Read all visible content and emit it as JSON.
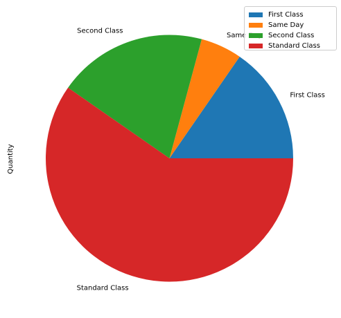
{
  "chart_data": {
    "type": "pie",
    "ylabel": "Quantity",
    "categories": [
      "First Class",
      "Same Day",
      "Second Class",
      "Standard Class"
    ],
    "values": [
      15.4,
      5.4,
      19.5,
      59.7
    ],
    "colors": [
      "#1f77b4",
      "#ff7f0e",
      "#2ca02c",
      "#d62728"
    ],
    "legend": {
      "placement": "top-right",
      "entries": [
        "First Class",
        "Same Day",
        "Second Class",
        "Standard Class"
      ]
    }
  }
}
